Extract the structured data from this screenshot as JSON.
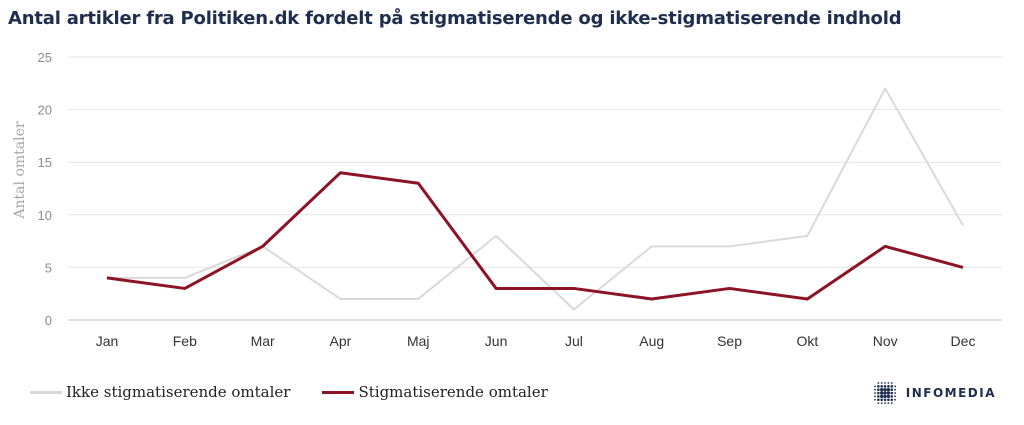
{
  "title": "Antal artikler fra Politiken.dk fordelt på stigmatiserende og ikke-stigmatiserende indhold",
  "brand": {
    "name": "INFOMEDIA",
    "logo_icon": "infomedia-dot-grid-logo",
    "color": "#1f2d4e"
  },
  "chart_data": {
    "type": "line",
    "title": "Antal artikler fra Politiken.dk fordelt på stigmatiserende og ikke-stigmatiserende indhold",
    "xlabel": "",
    "ylabel": "Antal omtaler",
    "ylim": [
      0,
      25
    ],
    "yticks": [
      0,
      5,
      10,
      15,
      20,
      25
    ],
    "grid": true,
    "legend_position": "bottom-left",
    "categories": [
      "Jan",
      "Feb",
      "Mar",
      "Apr",
      "Maj",
      "Jun",
      "Jul",
      "Aug",
      "Sep",
      "Okt",
      "Nov",
      "Dec"
    ],
    "series": [
      {
        "name": "Ikke stigmatiserende omtaler",
        "color": "#d9d9d9",
        "values": [
          4,
          4,
          7,
          2,
          2,
          8,
          1,
          7,
          7,
          8,
          22,
          9
        ]
      },
      {
        "name": "Stigmatiserende omtaler",
        "color": "#8c1326",
        "values": [
          4,
          3,
          7,
          14,
          13,
          3,
          3,
          2,
          3,
          2,
          7,
          5
        ]
      }
    ]
  }
}
